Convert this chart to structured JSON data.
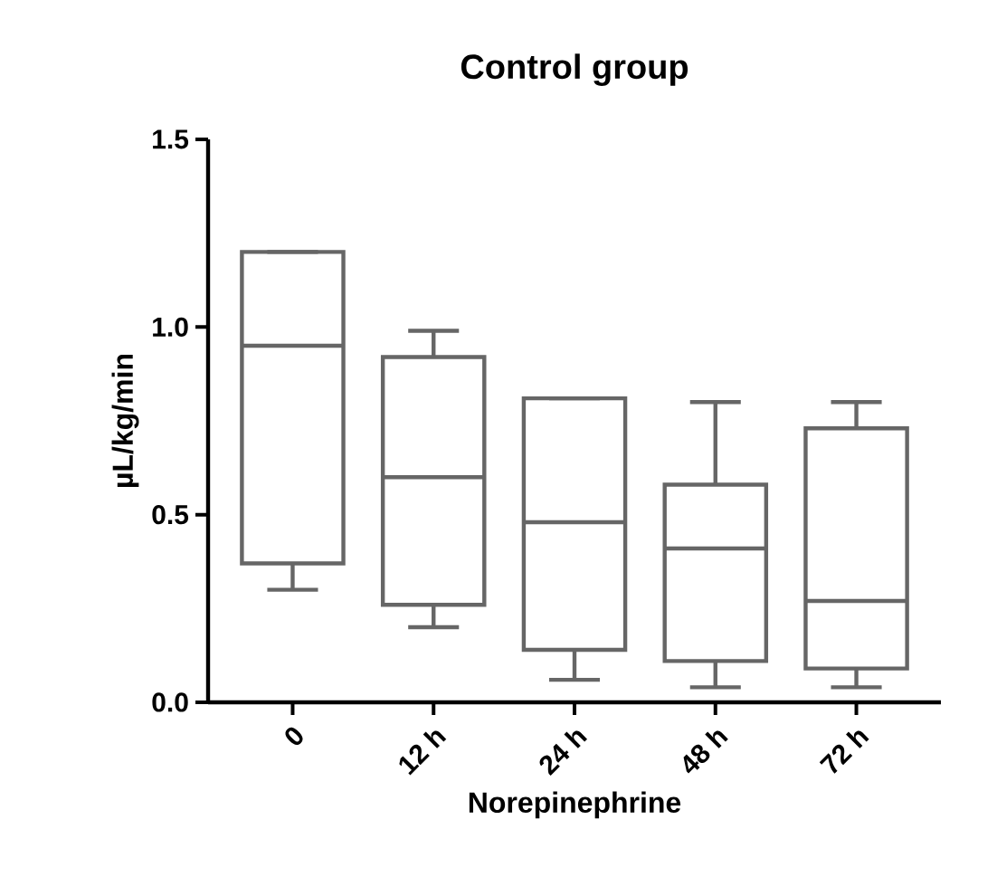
{
  "chart_data": {
    "type": "box",
    "title": "Control group",
    "xlabel": "Norepinephrine",
    "ylabel": "µL/kg/min",
    "categories": [
      "0",
      "12 h",
      "24 h",
      "48 h",
      "72 h"
    ],
    "color": "#666666",
    "ylim": [
      0,
      1.5
    ],
    "yticks": [
      {
        "value": 0,
        "label": "0.0"
      },
      {
        "value": 0.5,
        "label": "0.5"
      },
      {
        "value": 1.0,
        "label": "1.0"
      },
      {
        "value": 1.5,
        "label": "1.5"
      }
    ],
    "grid": false,
    "boxes": [
      {
        "low": 0.3,
        "q1": 0.37,
        "median": 0.95,
        "q3": 1.2,
        "high": 1.2
      },
      {
        "low": 0.2,
        "q1": 0.26,
        "median": 0.6,
        "q3": 0.92,
        "high": 0.99
      },
      {
        "low": 0.06,
        "q1": 0.14,
        "median": 0.48,
        "q3": 0.81,
        "high": 0.81
      },
      {
        "low": 0.04,
        "q1": 0.11,
        "median": 0.41,
        "q3": 0.58,
        "high": 0.8
      },
      {
        "low": 0.04,
        "q1": 0.09,
        "median": 0.27,
        "q3": 0.73,
        "high": 0.8
      }
    ]
  }
}
